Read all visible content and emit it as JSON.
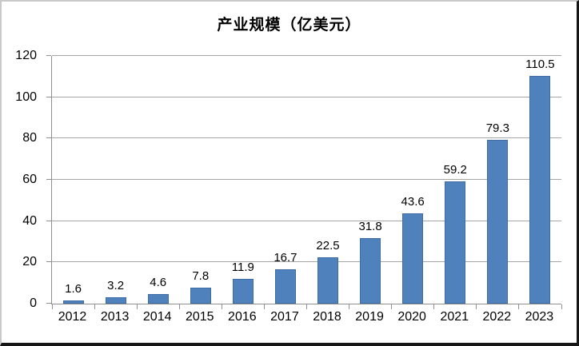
{
  "title": "产业规模（亿美元）",
  "colors": {
    "bar": "#4f81bd",
    "bar_border": "#3f6ca2",
    "gridline": "#a6a6a6",
    "axis": "#8f8f8f",
    "text": "#000000",
    "frame_light_border": "#c9c9c9",
    "frame_dark_border": "#161616",
    "background": "#ffffff"
  },
  "chart_data": {
    "type": "bar",
    "title": "产业规模（亿美元）",
    "categories": [
      "2012",
      "2013",
      "2014",
      "2015",
      "2016",
      "2017",
      "2018",
      "2019",
      "2020",
      "2021",
      "2022",
      "2023"
    ],
    "values": [
      1.6,
      3.2,
      4.6,
      7.8,
      11.9,
      16.7,
      22.5,
      31.8,
      43.6,
      59.2,
      79.3,
      110.5
    ],
    "data_labels": [
      "1.6",
      "3.2",
      "4.6",
      "7.8",
      "11.9",
      "16.7",
      "22.5",
      "31.8",
      "43.6",
      "59.2",
      "79.3",
      "110.5"
    ],
    "xlabel": "",
    "ylabel": "",
    "ylim": [
      0,
      120
    ],
    "ytick_step": 20,
    "ytick_labels": [
      "0",
      "20",
      "40",
      "60",
      "80",
      "100",
      "120"
    ],
    "grid": true,
    "legend": false,
    "series_color": "#4f81bd"
  }
}
